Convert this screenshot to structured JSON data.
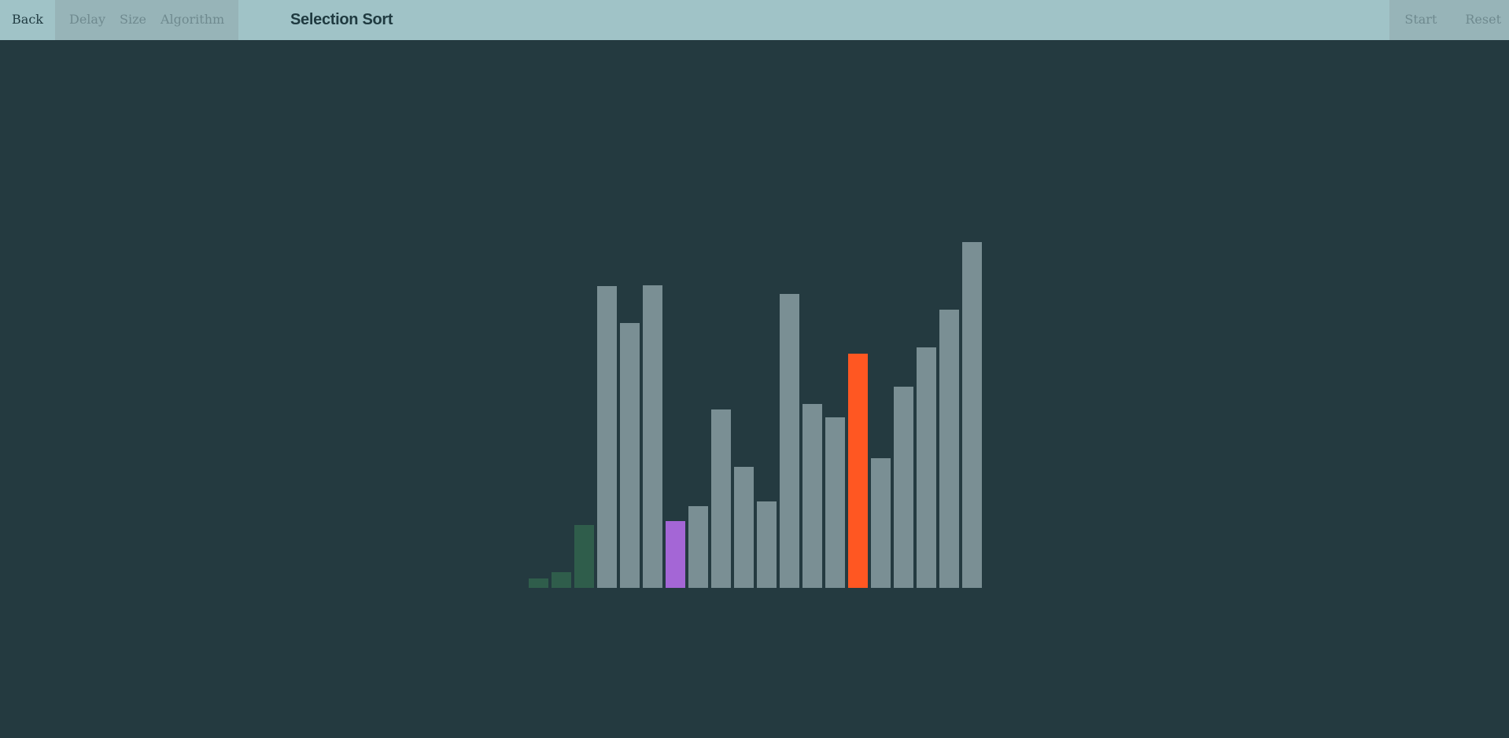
{
  "toolbar": {
    "back_label": "Back",
    "delay_label": "Delay",
    "size_label": "Size",
    "algorithm_label": "Algorithm",
    "title": "Selection Sort",
    "start_label": "Start",
    "reset_label": "Reset"
  },
  "colors": {
    "background": "#243a40",
    "toolbar": "#a0c3c7",
    "toolbar_disabled": "#97b4b8",
    "bar_default": "#7a8f94",
    "bar_sorted": "#2f5d4b",
    "bar_current_min": "#a466d6",
    "bar_compare": "#ff5722"
  },
  "chart_data": {
    "type": "bar",
    "values": [
      12,
      20,
      80,
      384,
      337,
      385,
      85,
      104,
      227,
      154,
      110,
      374,
      234,
      217,
      298,
      165,
      256,
      306,
      354,
      440
    ],
    "states": [
      "sorted",
      "sorted",
      "sorted",
      "default",
      "default",
      "default",
      "current-min",
      "default",
      "default",
      "default",
      "default",
      "default",
      "default",
      "default",
      "compare",
      "default",
      "default",
      "default",
      "default",
      "default"
    ],
    "ylim": [
      0,
      440
    ]
  }
}
